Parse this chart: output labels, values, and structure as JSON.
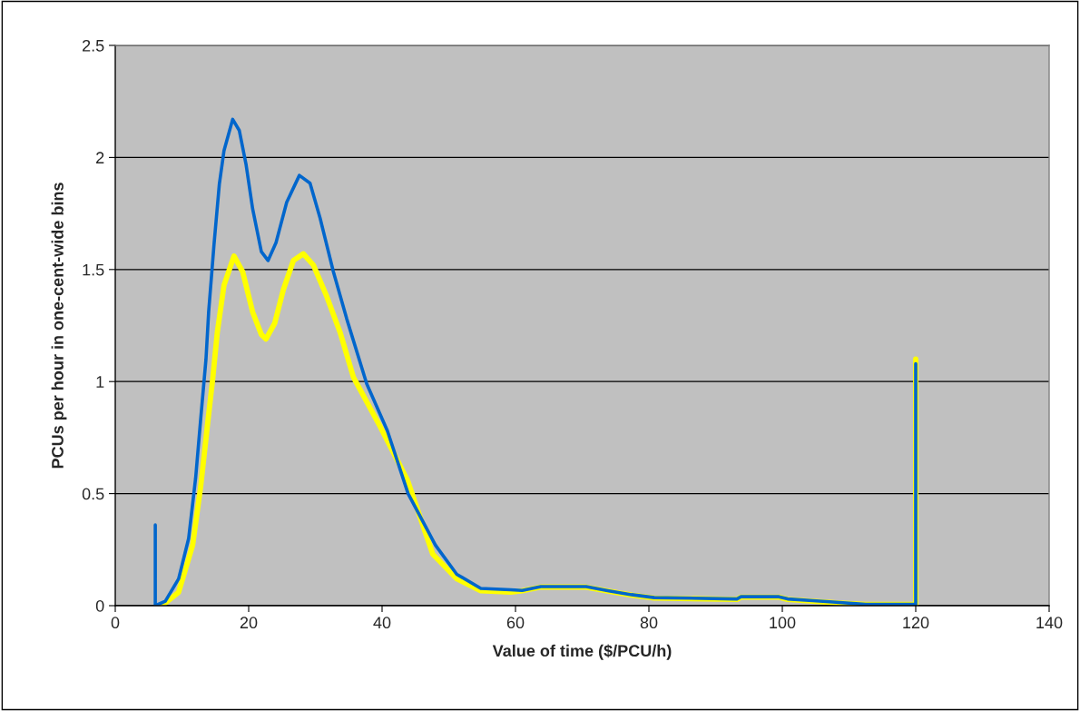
{
  "chart_data": {
    "type": "line",
    "xlabel": "Value of time ($/PCU/h)",
    "ylabel": "PCUs per hour in one-cent-wide bins",
    "xlim": [
      0,
      140
    ],
    "xticks": [
      0,
      20,
      40,
      60,
      80,
      100,
      120,
      140
    ],
    "ylim": [
      0,
      2.5
    ],
    "yticks": [
      0,
      0.5,
      1,
      1.5,
      2,
      2.5
    ],
    "grid": "y",
    "legend": false,
    "marker": "none",
    "line_style": "solid",
    "series": [
      {
        "color": "#ffff00",
        "x": [
          7.0,
          9.5,
          11.6,
          12.8,
          13.8,
          14.6,
          15.3,
          16.3,
          17.8,
          19.1,
          20.6,
          21.9,
          22.6,
          23.9,
          25.2,
          26.7,
          28.2,
          29.7,
          31.7,
          33.7,
          35.7,
          39.7,
          43.8,
          47.6,
          51.2,
          54.8,
          59.3,
          61,
          63.8,
          70.6,
          74,
          77.4,
          80.8,
          93.2,
          93.8,
          99.5,
          100.8,
          104.6,
          108.6,
          112.5,
          120,
          120
        ],
        "values": [
          0,
          0.06,
          0.27,
          0.53,
          0.8,
          1.01,
          1.22,
          1.43,
          1.56,
          1.49,
          1.31,
          1.21,
          1.19,
          1.26,
          1.41,
          1.54,
          1.57,
          1.52,
          1.38,
          1.22,
          1.02,
          0.8,
          0.56,
          0.23,
          0.12,
          0.066,
          0.06,
          0.066,
          0.083,
          0.083,
          0.064,
          0.047,
          0.034,
          0.028,
          0.038,
          0.038,
          0.028,
          0.02,
          0.012,
          0.005,
          0.005,
          1.1
        ]
      },
      {
        "color": "#0066cc",
        "x": [
          6,
          6,
          7.5,
          9.5,
          11.0,
          12.05,
          12.8,
          13.6,
          14.0,
          14.8,
          15.6,
          16.3,
          17.6,
          18.6,
          19.6,
          20.6,
          21.9,
          22.9,
          24.1,
          25.7,
          27.6,
          29.2,
          30.7,
          32.7,
          34.7,
          37.7,
          40.8,
          43.9,
          48.0,
          51.2,
          54.8,
          59.3,
          61,
          63.8,
          70.6,
          74,
          77.4,
          80.8,
          93.2,
          93.8,
          99.5,
          100.8,
          104.6,
          108.6,
          112.5,
          120,
          120
        ],
        "values": [
          0.36,
          0,
          0.02,
          0.12,
          0.3,
          0.57,
          0.83,
          1.1,
          1.31,
          1.61,
          1.88,
          2.03,
          2.17,
          2.12,
          1.97,
          1.77,
          1.58,
          1.54,
          1.62,
          1.8,
          1.92,
          1.885,
          1.73,
          1.49,
          1.28,
          0.99,
          0.78,
          0.5,
          0.27,
          0.14,
          0.077,
          0.071,
          0.068,
          0.085,
          0.085,
          0.066,
          0.049,
          0.036,
          0.03,
          0.04,
          0.04,
          0.03,
          0.022,
          0.014,
          0.006,
          0.006,
          1.08
        ]
      }
    ]
  }
}
